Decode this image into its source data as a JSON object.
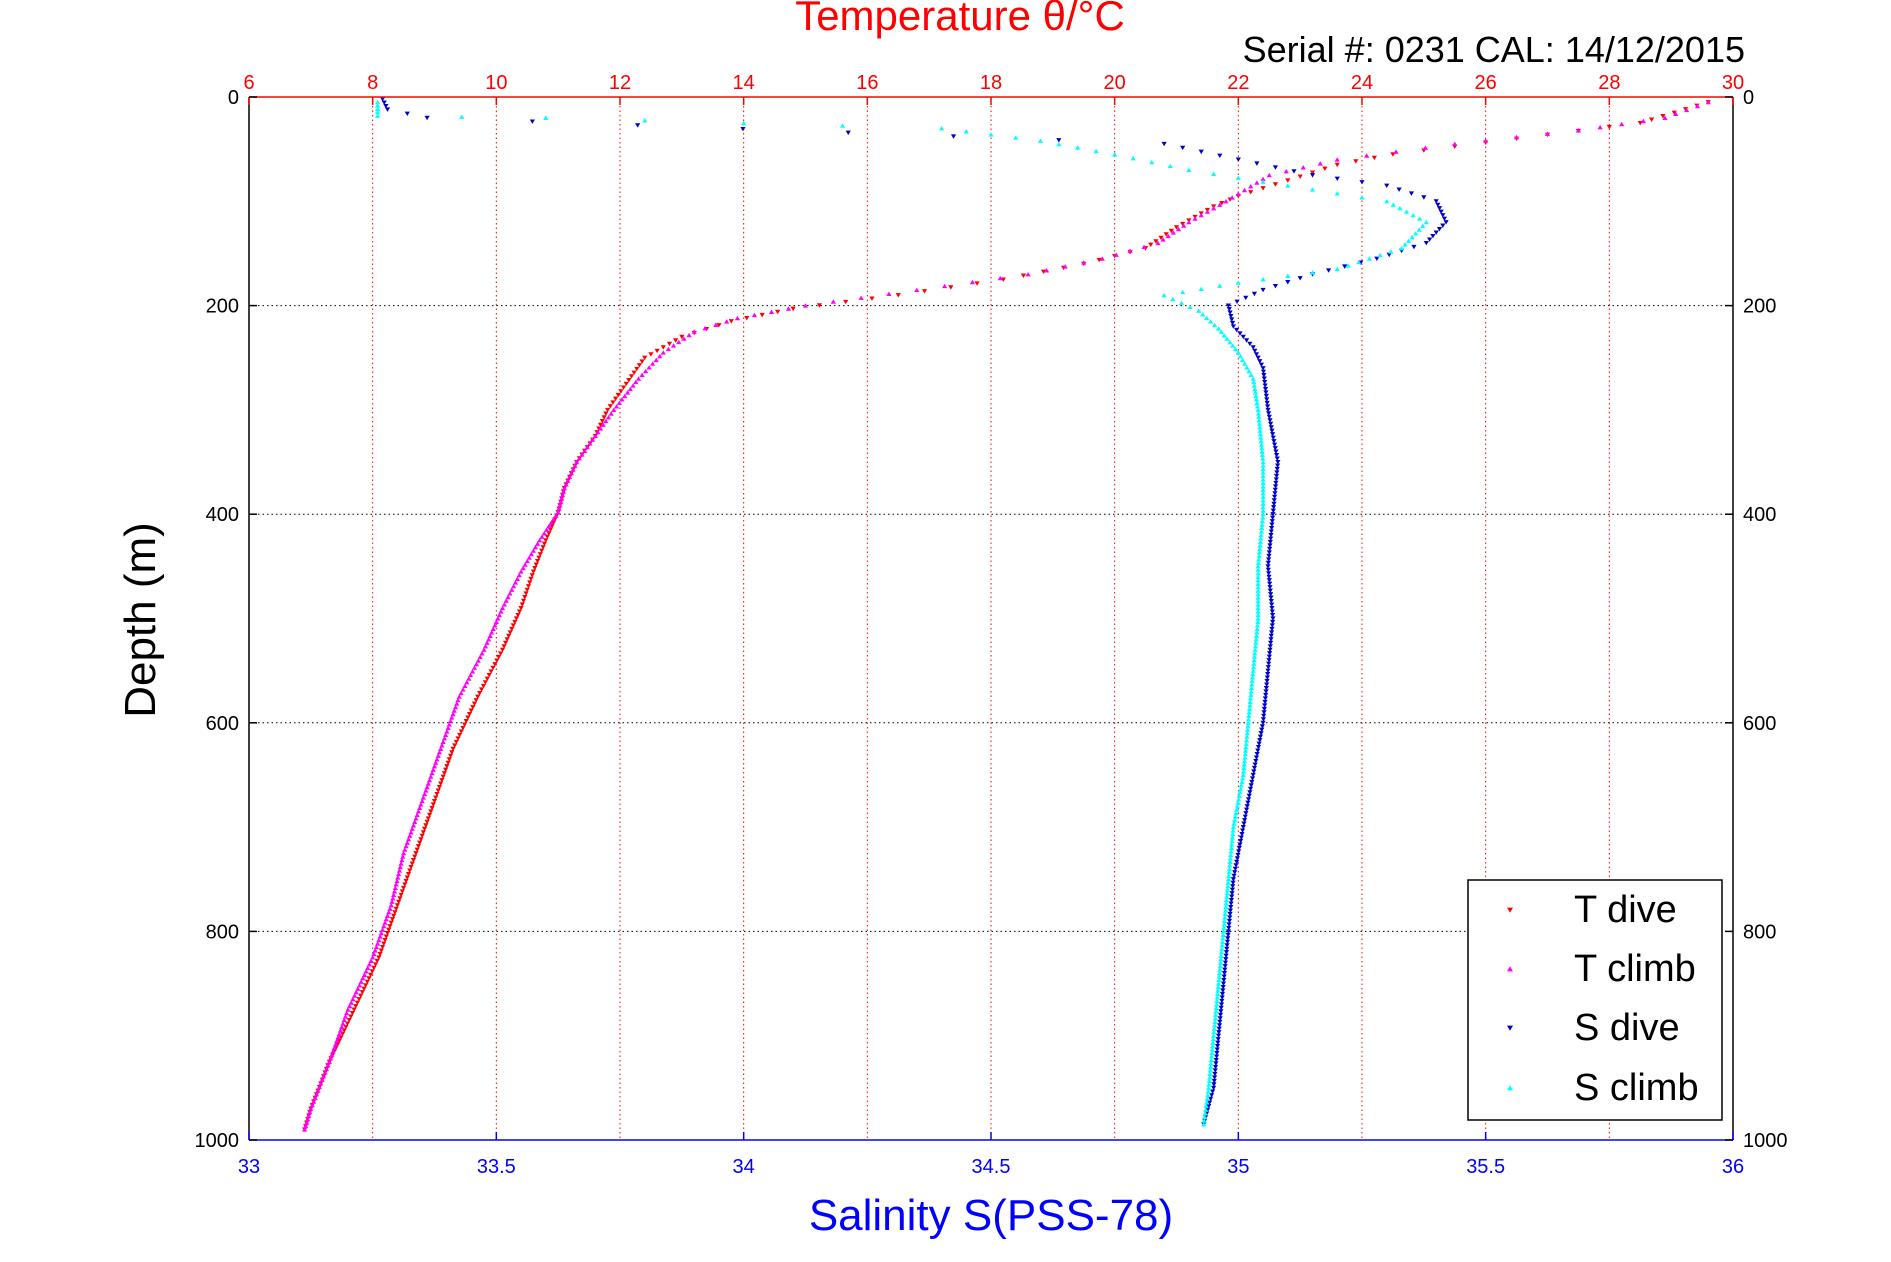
{
  "chart_data": {
    "type": "scatter",
    "title": "Temperature θ/°C",
    "subtitle": "Serial #: 0231  CAL: 14/12/2015",
    "ylabel": "Depth (m)",
    "xlabel_bottom": "Salinity S(PSS-78)",
    "y_axis": {
      "range": [
        0,
        1000
      ],
      "reversed": true,
      "ticks": [
        "0",
        "200",
        "400",
        "600",
        "800",
        "1000"
      ]
    },
    "x_axis_top": {
      "quantity": "temperature",
      "range": [
        6,
        30
      ],
      "ticks": [
        "6",
        "8",
        "10",
        "12",
        "14",
        "16",
        "18",
        "20",
        "22",
        "24",
        "26",
        "28",
        "30"
      ],
      "color": "#ff0000"
    },
    "x_axis_bottom": {
      "quantity": "salinity",
      "range": [
        33,
        36
      ],
      "ticks": [
        "33",
        "33.5",
        "34",
        "34.5",
        "35",
        "35.5",
        "36"
      ],
      "color": "#0000ff"
    },
    "grid": {
      "vertical": "red dotted at temperature ticks",
      "horizontal": "black dotted at depth ticks"
    },
    "legend": {
      "placement": "bottom-right",
      "entries": [
        "T dive",
        "T climb",
        "S dive",
        "S climb"
      ]
    },
    "series": [
      {
        "name": "T dive",
        "axis": "temperature",
        "color": "#ff0000",
        "marker": "triangle-down",
        "points": [
          [
            29.6,
            5
          ],
          [
            28.5,
            25
          ],
          [
            26.5,
            40
          ],
          [
            24.5,
            55
          ],
          [
            23.6,
            65
          ],
          [
            22.8,
            80
          ],
          [
            22.0,
            95
          ],
          [
            21.6,
            105
          ],
          [
            21.0,
            125
          ],
          [
            20.5,
            145
          ],
          [
            19.5,
            160
          ],
          [
            18.2,
            175
          ],
          [
            16.5,
            190
          ],
          [
            14.8,
            203
          ],
          [
            13.8,
            215
          ],
          [
            13.0,
            230
          ],
          [
            12.4,
            250
          ],
          [
            12.1,
            275
          ],
          [
            11.8,
            300
          ],
          [
            11.6,
            325
          ],
          [
            11.3,
            350
          ],
          [
            11.1,
            375
          ],
          [
            11.0,
            398
          ],
          [
            10.8,
            425
          ],
          [
            10.6,
            455
          ],
          [
            10.4,
            490
          ],
          [
            10.1,
            530
          ],
          [
            9.7,
            575
          ],
          [
            9.3,
            625
          ],
          [
            9.0,
            675
          ],
          [
            8.7,
            725
          ],
          [
            8.4,
            775
          ],
          [
            8.1,
            825
          ],
          [
            7.7,
            875
          ],
          [
            7.3,
            925
          ],
          [
            7.0,
            970
          ],
          [
            6.9,
            990
          ]
        ]
      },
      {
        "name": "T climb",
        "axis": "temperature",
        "color": "#ff00ff",
        "marker": "triangle-up",
        "points": [
          [
            29.6,
            5
          ],
          [
            28.9,
            20
          ],
          [
            27.5,
            32
          ],
          [
            25.5,
            45
          ],
          [
            23.6,
            60
          ],
          [
            22.5,
            75
          ],
          [
            21.8,
            100
          ],
          [
            21.2,
            120
          ],
          [
            20.7,
            140
          ],
          [
            19.8,
            155
          ],
          [
            18.6,
            170
          ],
          [
            16.8,
            185
          ],
          [
            15.0,
            200
          ],
          [
            13.9,
            212
          ],
          [
            13.2,
            225
          ],
          [
            12.7,
            245
          ],
          [
            12.3,
            270
          ],
          [
            11.9,
            300
          ],
          [
            11.6,
            325
          ],
          [
            11.3,
            350
          ],
          [
            11.1,
            375
          ],
          [
            11.0,
            398
          ],
          [
            10.7,
            425
          ],
          [
            10.4,
            455
          ],
          [
            10.1,
            490
          ],
          [
            9.8,
            530
          ],
          [
            9.4,
            575
          ],
          [
            9.1,
            625
          ],
          [
            8.8,
            675
          ],
          [
            8.5,
            725
          ],
          [
            8.3,
            775
          ],
          [
            8.0,
            825
          ],
          [
            7.6,
            875
          ],
          [
            7.3,
            925
          ],
          [
            7.0,
            970
          ],
          [
            6.9,
            990
          ]
        ]
      },
      {
        "name": "S dive",
        "axis": "salinity",
        "color": "#0000cc",
        "marker": "triangle-down",
        "points": [
          [
            33.27,
            2
          ],
          [
            33.28,
            12
          ],
          [
            33.36,
            20
          ],
          [
            34.85,
            45
          ],
          [
            35.0,
            60
          ],
          [
            35.15,
            75
          ],
          [
            35.3,
            85
          ],
          [
            35.4,
            100
          ],
          [
            35.42,
            120
          ],
          [
            35.38,
            140
          ],
          [
            35.28,
            155
          ],
          [
            35.15,
            170
          ],
          [
            35.05,
            185
          ],
          [
            34.98,
            200
          ],
          [
            34.99,
            220
          ],
          [
            35.03,
            240
          ],
          [
            35.05,
            260
          ],
          [
            35.06,
            300
          ],
          [
            35.08,
            350
          ],
          [
            35.07,
            400
          ],
          [
            35.06,
            450
          ],
          [
            35.07,
            500
          ],
          [
            35.06,
            550
          ],
          [
            35.05,
            600
          ],
          [
            35.03,
            650
          ],
          [
            35.01,
            700
          ],
          [
            34.99,
            750
          ],
          [
            34.98,
            800
          ],
          [
            34.97,
            850
          ],
          [
            34.96,
            900
          ],
          [
            34.95,
            950
          ],
          [
            34.93,
            985
          ]
        ]
      },
      {
        "name": "S climb",
        "axis": "salinity",
        "color": "#00ffff",
        "marker": "triangle-up",
        "points": [
          [
            33.26,
            5
          ],
          [
            33.26,
            18
          ],
          [
            33.6,
            20
          ],
          [
            34.0,
            25
          ],
          [
            34.4,
            30
          ],
          [
            34.6,
            42
          ],
          [
            34.75,
            55
          ],
          [
            34.9,
            70
          ],
          [
            35.1,
            85
          ],
          [
            35.3,
            100
          ],
          [
            35.38,
            120
          ],
          [
            35.33,
            145
          ],
          [
            35.2,
            165
          ],
          [
            35.0,
            178
          ],
          [
            34.85,
            190
          ],
          [
            34.92,
            205
          ],
          [
            34.96,
            222
          ],
          [
            35.0,
            245
          ],
          [
            35.03,
            270
          ],
          [
            35.04,
            300
          ],
          [
            35.05,
            350
          ],
          [
            35.05,
            400
          ],
          [
            35.04,
            450
          ],
          [
            35.04,
            500
          ],
          [
            35.03,
            550
          ],
          [
            35.02,
            600
          ],
          [
            35.01,
            650
          ],
          [
            34.99,
            700
          ],
          [
            34.98,
            750
          ],
          [
            34.97,
            800
          ],
          [
            34.96,
            850
          ],
          [
            34.95,
            900
          ],
          [
            34.94,
            950
          ],
          [
            34.93,
            985
          ]
        ]
      }
    ]
  }
}
